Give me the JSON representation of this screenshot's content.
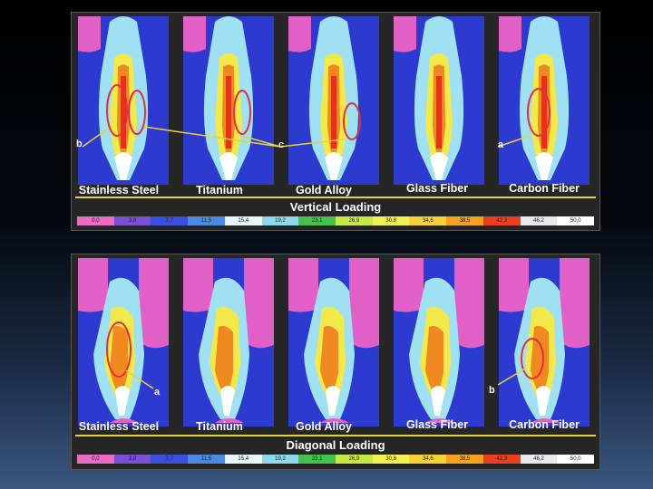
{
  "materials": [
    "Stainless Steel",
    "Titanium",
    "Gold Alloy",
    "Glass Fiber",
    "Carbon Fiber"
  ],
  "panels": [
    {
      "title": "Vertical Loading",
      "annotations": [
        "b",
        "c",
        "a"
      ]
    },
    {
      "title": "Diagonal Loading",
      "annotations": [
        "a",
        "b"
      ]
    }
  ],
  "scale_values": [
    "0,0",
    "3,8",
    "7,7",
    "11,5",
    "15,4",
    "19,2",
    "23,1",
    "26,9",
    "30,8",
    "34,6",
    "38,5",
    "42,3",
    "46,2",
    "50,0"
  ],
  "scale_colors": [
    "#e86bc4",
    "#7a4fd0",
    "#3c4fd8",
    "#4a8ae0",
    "#e8f4fa",
    "#8fd8ea",
    "#46c04e",
    "#c8e84a",
    "#f4f050",
    "#f8d03a",
    "#f4a020",
    "#e84020",
    "#e8e8f0",
    "#ffffff"
  ]
}
